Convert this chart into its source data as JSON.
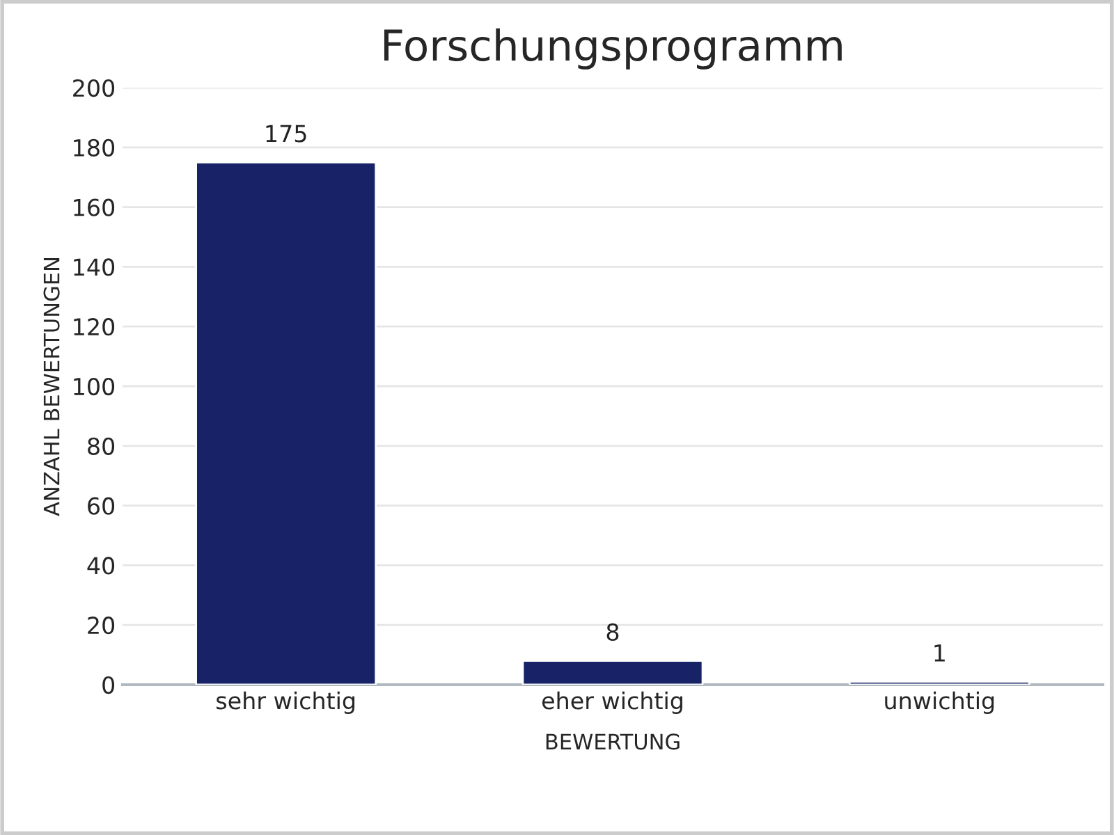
{
  "chart_data": {
    "type": "bar",
    "title": "Forschungsprogramm",
    "xlabel": "BEWERTUNG",
    "ylabel": "ANZAHL BEWERTUNGEN",
    "categories": [
      "sehr wichtig",
      "eher wichtig",
      "unwichtig"
    ],
    "values": [
      175,
      8,
      1
    ],
    "color": "#172366",
    "ylim": [
      0,
      200
    ],
    "yticks": [
      0,
      20,
      40,
      60,
      80,
      100,
      120,
      140,
      160,
      180,
      200
    ],
    "grid": "y",
    "data_labels": true
  }
}
